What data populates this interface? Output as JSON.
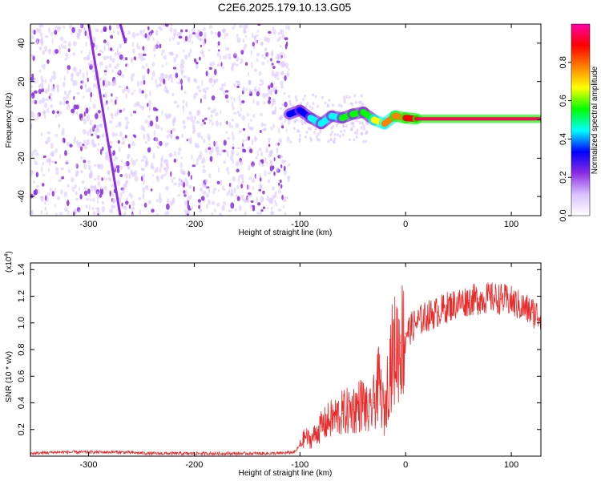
{
  "figure_title": "C2E6.2025.179.10.13.G05",
  "chart_data": [
    {
      "type": "heatmap",
      "xlabel": "Height of straight line (km)",
      "ylabel": "Frequency (Hz)",
      "xlim": [
        -355,
        128
      ],
      "ylim": [
        -50,
        50
      ],
      "x_ticks": [
        -300,
        -200,
        -100,
        0,
        100
      ],
      "y_ticks": [
        -40,
        -20,
        0,
        20,
        40
      ],
      "colorbar": {
        "label": "Normalized spectral amplitude",
        "range": [
          0,
          1
        ],
        "ticks": [
          "0.0",
          "0.2",
          "0.4",
          "0.6",
          "0.8"
        ],
        "colors": [
          "#ffffff",
          "#d9c2ff",
          "#8a2be2",
          "#0000ff",
          "#00ffff",
          "#00ff00",
          "#ffff00",
          "#ff8000",
          "#ff0000",
          "#ff00aa"
        ]
      },
      "noise_region_x": [
        -355,
        -110
      ],
      "streaks": [
        {
          "x_start": -300,
          "y_start": 50,
          "x_end": -270,
          "y_end": -50,
          "amplitude": 0.2
        },
        {
          "x_start": -270,
          "y_start": 50,
          "x_end": -265,
          "y_end": 40,
          "amplitude": 0.2
        }
      ],
      "signal_track": [
        {
          "x": -110,
          "freq": 3,
          "amplitude": 0.35
        },
        {
          "x": -100,
          "freq": 5,
          "amplitude": 0.35
        },
        {
          "x": -90,
          "freq": 1,
          "amplitude": 0.4
        },
        {
          "x": -80,
          "freq": -2,
          "amplitude": 0.45
        },
        {
          "x": -70,
          "freq": 2,
          "amplitude": 0.45
        },
        {
          "x": -60,
          "freq": 1,
          "amplitude": 0.5
        },
        {
          "x": -50,
          "freq": 3,
          "amplitude": 0.55
        },
        {
          "x": -40,
          "freq": 4,
          "amplitude": 0.55
        },
        {
          "x": -30,
          "freq": 0,
          "amplitude": 0.7
        },
        {
          "x": -20,
          "freq": -2,
          "amplitude": 0.75
        },
        {
          "x": -10,
          "freq": 2,
          "amplitude": 0.8
        },
        {
          "x": 0,
          "freq": 1,
          "amplitude": 0.85
        },
        {
          "x": 10,
          "freq": 0.5,
          "amplitude": 0.9
        },
        {
          "x": 128,
          "freq": 0.5,
          "amplitude": 0.95
        }
      ]
    },
    {
      "type": "line",
      "xlabel": "Height of straight line (km)",
      "ylabel": "SNR (10 * v/v)",
      "y_multiplier_label": "(x10",
      "y_multiplier_exp": "4",
      "xlim": [
        -355,
        128
      ],
      "ylim": [
        0,
        1.45
      ],
      "x_ticks": [
        -300,
        -200,
        -100,
        0,
        100
      ],
      "y_ticks": [
        "0.2",
        "0.4",
        "0.6",
        "0.8",
        "1.0",
        "1.2",
        "1.4"
      ],
      "color": "#e82b2b",
      "series": [
        {
          "x": [
            -355,
            -330,
            -300,
            -270,
            -240,
            -210,
            -180,
            -150,
            -120,
            -105,
            -100,
            -95,
            -90,
            -80,
            -70,
            -60,
            -50,
            -40,
            -35,
            -30,
            -25,
            -20,
            -15,
            -10,
            -5,
            0,
            10,
            20,
            30,
            40,
            50,
            60,
            70,
            80,
            90,
            100,
            110,
            120,
            128
          ],
          "y": [
            0.02,
            0.03,
            0.03,
            0.03,
            0.02,
            0.02,
            0.02,
            0.02,
            0.02,
            0.03,
            0.08,
            0.15,
            0.12,
            0.22,
            0.28,
            0.32,
            0.35,
            0.4,
            0.3,
            0.4,
            0.55,
            0.3,
            0.7,
            0.8,
            0.85,
            0.92,
            1.0,
            1.05,
            1.08,
            1.12,
            1.15,
            1.17,
            1.18,
            1.19,
            1.18,
            1.16,
            1.12,
            1.08,
            1.05
          ]
        }
      ]
    }
  ]
}
